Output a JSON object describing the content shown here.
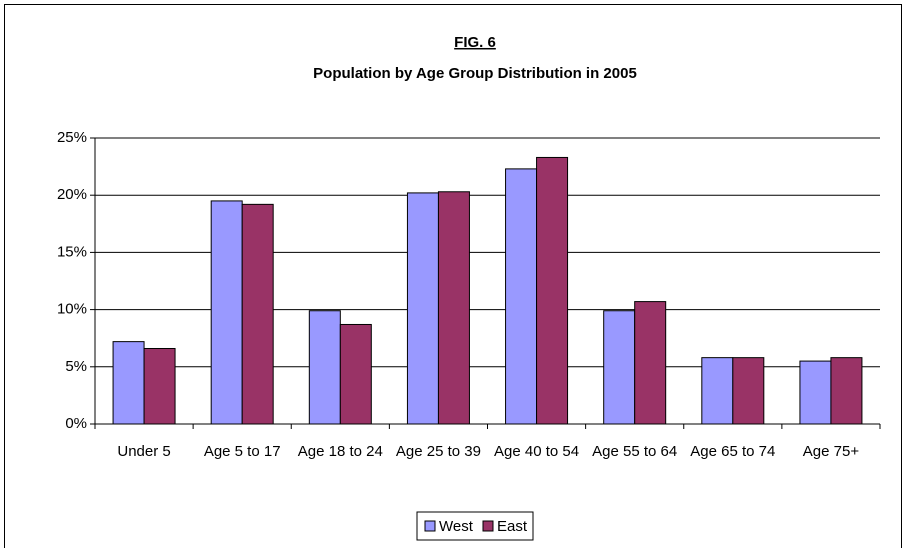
{
  "chart_data": {
    "type": "bar",
    "label": "FIG. 6",
    "title": "Population by Age Group Distribution in 2005",
    "categories": [
      "Under 5",
      "Age 5 to 17",
      "Age 18 to 24",
      "Age 25 to 39",
      "Age 40 to 54",
      "Age 55 to 64",
      "Age 65 to 74",
      "Age 75+"
    ],
    "series": [
      {
        "name": "West",
        "color": "#9999ff",
        "values": [
          7.2,
          19.5,
          9.9,
          20.2,
          22.3,
          9.9,
          5.8,
          5.5
        ]
      },
      {
        "name": "East",
        "color": "#993366",
        "values": [
          6.6,
          19.2,
          8.7,
          20.3,
          23.3,
          10.7,
          5.8,
          5.8
        ]
      }
    ],
    "ylim": [
      0,
      25
    ],
    "yticks": [
      {
        "value": 0,
        "label": "0%"
      },
      {
        "value": 5,
        "label": "5%"
      },
      {
        "value": 10,
        "label": "10%"
      },
      {
        "value": 15,
        "label": "15%"
      },
      {
        "value": 20,
        "label": "20%"
      },
      {
        "value": 25,
        "label": "25%"
      }
    ],
    "grid": true,
    "legend": "bottom"
  }
}
